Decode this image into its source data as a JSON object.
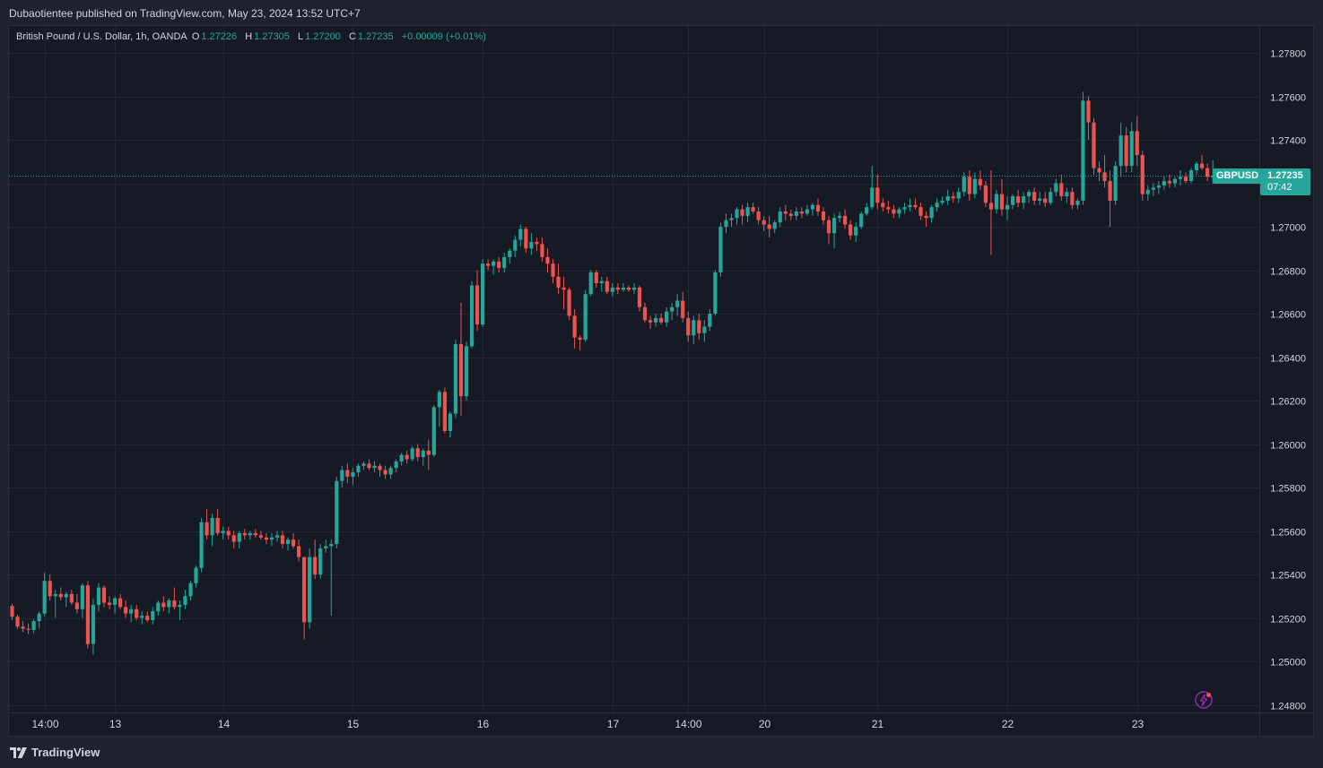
{
  "header": {
    "published_by": "Dubaotientee published on TradingView.com, May 23, 2024 13:52 UTC+7"
  },
  "legend": {
    "instrument": "British Pound / U.S. Dollar, 1h, OANDA",
    "open_label": "O",
    "open": "1.27226",
    "high_label": "H",
    "high": "1.27305",
    "low_label": "L",
    "low": "1.27200",
    "close_label": "C",
    "close": "1.27235",
    "change": "+0.00009 (+0.01%)"
  },
  "price_tag": {
    "symbol": "GBPUSD",
    "price": "1.27235",
    "countdown": "07:42"
  },
  "footer": {
    "brand": "TradingView"
  },
  "colors": {
    "up": "#26a69a",
    "down": "#ef5350",
    "background": "#161a25",
    "grid": "#232733",
    "text": "#d1d4dc"
  },
  "icons": {
    "alert": "lightning-bolt-icon",
    "logo": "tradingview-logo-icon"
  },
  "chart_data": {
    "type": "candlestick",
    "symbol": "GBPUSD",
    "interval": "1h",
    "ylim": [
      1.2475,
      1.279
    ],
    "y_ticks": [
      "1.27800",
      "1.27600",
      "1.27400",
      "1.27200",
      "1.27000",
      "1.26800",
      "1.26600",
      "1.26400",
      "1.26200",
      "1.26000",
      "1.25800",
      "1.25600",
      "1.25400",
      "1.25200",
      "1.25000",
      "1.24800"
    ],
    "x_ticks": [
      {
        "label": "14:00",
        "index": 6
      },
      {
        "label": "13",
        "index": 19
      },
      {
        "label": "14",
        "index": 39
      },
      {
        "label": "15",
        "index": 63
      },
      {
        "label": "16",
        "index": 87
      },
      {
        "label": "17",
        "index": 111
      },
      {
        "label": "14:00",
        "index": 125
      },
      {
        "label": "20",
        "index": 139
      },
      {
        "label": "21",
        "index": 160
      },
      {
        "label": "22",
        "index": 184
      },
      {
        "label": "23",
        "index": 208
      }
    ],
    "last_price": 1.27235,
    "grid": true,
    "candles": [
      [
        1.25255,
        1.25265,
        1.2519,
        1.25205
      ],
      [
        1.25205,
        1.25215,
        1.2515,
        1.2516
      ],
      [
        1.2516,
        1.25185,
        1.25135,
        1.2515
      ],
      [
        1.2515,
        1.25175,
        1.25125,
        1.25145
      ],
      [
        1.25145,
        1.25195,
        1.2513,
        1.25185
      ],
      [
        1.25185,
        1.2523,
        1.2515,
        1.2522
      ],
      [
        1.2522,
        1.2541,
        1.25205,
        1.2537
      ],
      [
        1.2537,
        1.254,
        1.2528,
        1.253
      ],
      [
        1.253,
        1.2533,
        1.252,
        1.2531
      ],
      [
        1.2531,
        1.2534,
        1.2528,
        1.25295
      ],
      [
        1.25295,
        1.2532,
        1.2525,
        1.2531
      ],
      [
        1.2531,
        1.2533,
        1.2526,
        1.2527
      ],
      [
        1.2527,
        1.2531,
        1.2522,
        1.2524
      ],
      [
        1.2524,
        1.2536,
        1.252,
        1.2535
      ],
      [
        1.2535,
        1.2537,
        1.2506,
        1.2508
      ],
      [
        1.2508,
        1.2529,
        1.2503,
        1.2526
      ],
      [
        1.2526,
        1.2536,
        1.2523,
        1.2534
      ],
      [
        1.2534,
        1.2535,
        1.2525,
        1.2527
      ],
      [
        1.2527,
        1.253,
        1.2524,
        1.2526
      ],
      [
        1.2526,
        1.253,
        1.2522,
        1.2529
      ],
      [
        1.2529,
        1.2531,
        1.2524,
        1.2525
      ],
      [
        1.2525,
        1.2528,
        1.252,
        1.2522
      ],
      [
        1.2522,
        1.2526,
        1.2518,
        1.2524
      ],
      [
        1.2524,
        1.2526,
        1.2519,
        1.252
      ],
      [
        1.252,
        1.2523,
        1.2517,
        1.2521
      ],
      [
        1.2521,
        1.2523,
        1.2518,
        1.2519
      ],
      [
        1.2519,
        1.2525,
        1.2517,
        1.2523
      ],
      [
        1.2523,
        1.2528,
        1.2521,
        1.2527
      ],
      [
        1.2527,
        1.253,
        1.2523,
        1.2525
      ],
      [
        1.2525,
        1.2529,
        1.2522,
        1.2528
      ],
      [
        1.2528,
        1.2534,
        1.2524,
        1.2525
      ],
      [
        1.2525,
        1.2528,
        1.2519,
        1.2526
      ],
      [
        1.2526,
        1.2533,
        1.2524,
        1.253
      ],
      [
        1.253,
        1.2537,
        1.2528,
        1.2536
      ],
      [
        1.2536,
        1.2544,
        1.2534,
        1.2543
      ],
      [
        1.2543,
        1.2566,
        1.2541,
        1.2564
      ],
      [
        1.2564,
        1.257,
        1.2556,
        1.2558
      ],
      [
        1.2558,
        1.2568,
        1.2553,
        1.2566
      ],
      [
        1.2566,
        1.257,
        1.2558,
        1.2559
      ],
      [
        1.2559,
        1.2562,
        1.2556,
        1.256
      ],
      [
        1.256,
        1.2562,
        1.2556,
        1.2558
      ],
      [
        1.2558,
        1.256,
        1.2552,
        1.2555
      ],
      [
        1.2555,
        1.256,
        1.2552,
        1.2559
      ],
      [
        1.2559,
        1.2561,
        1.2556,
        1.2558
      ],
      [
        1.2558,
        1.256,
        1.2556,
        1.2559
      ],
      [
        1.2559,
        1.2561,
        1.2557,
        1.2558
      ],
      [
        1.2558,
        1.256,
        1.2556,
        1.2557
      ],
      [
        1.2557,
        1.2559,
        1.2554,
        1.2556
      ],
      [
        1.2556,
        1.2559,
        1.2553,
        1.2557
      ],
      [
        1.2557,
        1.256,
        1.2555,
        1.2558
      ],
      [
        1.2558,
        1.256,
        1.2552,
        1.2554
      ],
      [
        1.2554,
        1.2557,
        1.2551,
        1.2556
      ],
      [
        1.2556,
        1.2559,
        1.2552,
        1.2553
      ],
      [
        1.2553,
        1.2556,
        1.2546,
        1.2548
      ],
      [
        1.2548,
        1.2548,
        1.251,
        1.2518
      ],
      [
        1.2518,
        1.2552,
        1.2515,
        1.2548
      ],
      [
        1.2548,
        1.2556,
        1.2538,
        1.254
      ],
      [
        1.254,
        1.2554,
        1.2538,
        1.2552
      ],
      [
        1.2552,
        1.2556,
        1.255,
        1.2553
      ],
      [
        1.2553,
        1.2556,
        1.2521,
        1.2554
      ],
      [
        1.2554,
        1.2585,
        1.2552,
        1.2583
      ],
      [
        1.2583,
        1.259,
        1.258,
        1.2588
      ],
      [
        1.2588,
        1.2591,
        1.2582,
        1.2585
      ],
      [
        1.2585,
        1.2589,
        1.2581,
        1.2587
      ],
      [
        1.2587,
        1.2591,
        1.2585,
        1.259
      ],
      [
        1.259,
        1.2592,
        1.2588,
        1.2591
      ],
      [
        1.2591,
        1.2593,
        1.2588,
        1.2589
      ],
      [
        1.2589,
        1.2592,
        1.2587,
        1.259
      ],
      [
        1.259,
        1.2591,
        1.2585,
        1.2588
      ],
      [
        1.2588,
        1.259,
        1.2584,
        1.2586
      ],
      [
        1.2586,
        1.259,
        1.2584,
        1.2589
      ],
      [
        1.2589,
        1.2593,
        1.2587,
        1.2592
      ],
      [
        1.2592,
        1.2596,
        1.259,
        1.2595
      ],
      [
        1.2595,
        1.2597,
        1.2591,
        1.2593
      ],
      [
        1.2593,
        1.2599,
        1.2592,
        1.2598
      ],
      [
        1.2598,
        1.26,
        1.2592,
        1.2594
      ],
      [
        1.2594,
        1.2598,
        1.259,
        1.2597
      ],
      [
        1.2597,
        1.2602,
        1.2588,
        1.2595
      ],
      [
        1.2595,
        1.2618,
        1.2594,
        1.2617
      ],
      [
        1.2617,
        1.2625,
        1.2608,
        1.2624
      ],
      [
        1.2624,
        1.2626,
        1.2605,
        1.2606
      ],
      [
        1.2606,
        1.2615,
        1.2603,
        1.2614
      ],
      [
        1.2614,
        1.2648,
        1.2612,
        1.2646
      ],
      [
        1.2646,
        1.2665,
        1.2613,
        1.2622
      ],
      [
        1.2622,
        1.2647,
        1.262,
        1.2645
      ],
      [
        1.2645,
        1.2675,
        1.2644,
        1.2673
      ],
      [
        1.2673,
        1.268,
        1.2652,
        1.2655
      ],
      [
        1.2655,
        1.2685,
        1.2654,
        1.2683
      ],
      [
        1.2683,
        1.2685,
        1.268,
        1.2682
      ],
      [
        1.2682,
        1.2685,
        1.2678,
        1.2684
      ],
      [
        1.2684,
        1.2686,
        1.2679,
        1.2681
      ],
      [
        1.2681,
        1.2688,
        1.2679,
        1.2686
      ],
      [
        1.2686,
        1.269,
        1.2683,
        1.2689
      ],
      [
        1.2689,
        1.2696,
        1.2686,
        1.2694
      ],
      [
        1.2694,
        1.2701,
        1.2691,
        1.2699
      ],
      [
        1.2699,
        1.27,
        1.2688,
        1.269
      ],
      [
        1.269,
        1.2697,
        1.2687,
        1.2693
      ],
      [
        1.2693,
        1.2695,
        1.2689,
        1.2692
      ],
      [
        1.2692,
        1.2695,
        1.2684,
        1.2686
      ],
      [
        1.2686,
        1.269,
        1.2679,
        1.2683
      ],
      [
        1.2683,
        1.2685,
        1.2674,
        1.2677
      ],
      [
        1.2677,
        1.2683,
        1.2669,
        1.2672
      ],
      [
        1.2672,
        1.2677,
        1.2662,
        1.2671
      ],
      [
        1.2671,
        1.2672,
        1.2657,
        1.2659
      ],
      [
        1.2659,
        1.2662,
        1.2644,
        1.2649
      ],
      [
        1.2649,
        1.265,
        1.2643,
        1.2648
      ],
      [
        1.2648,
        1.2671,
        1.2647,
        1.2669
      ],
      [
        1.2669,
        1.268,
        1.2668,
        1.2679
      ],
      [
        1.2679,
        1.268,
        1.2672,
        1.2674
      ],
      [
        1.2674,
        1.2677,
        1.267,
        1.2675
      ],
      [
        1.2675,
        1.2677,
        1.2669,
        1.267
      ],
      [
        1.267,
        1.2674,
        1.2668,
        1.2672
      ],
      [
        1.2672,
        1.2674,
        1.2669,
        1.2671
      ],
      [
        1.2671,
        1.2674,
        1.267,
        1.2672
      ],
      [
        1.2672,
        1.2673,
        1.267,
        1.2671
      ],
      [
        1.2671,
        1.2674,
        1.2669,
        1.2672
      ],
      [
        1.2672,
        1.2673,
        1.2661,
        1.2663
      ],
      [
        1.2663,
        1.2665,
        1.2656,
        1.2657
      ],
      [
        1.2657,
        1.2659,
        1.2653,
        1.2656
      ],
      [
        1.2656,
        1.266,
        1.2654,
        1.2658
      ],
      [
        1.2658,
        1.266,
        1.2655,
        1.2656
      ],
      [
        1.2656,
        1.2663,
        1.2654,
        1.2661
      ],
      [
        1.2661,
        1.2665,
        1.2657,
        1.2663
      ],
      [
        1.2663,
        1.2669,
        1.2659,
        1.2666
      ],
      [
        1.2666,
        1.267,
        1.2656,
        1.2658
      ],
      [
        1.2658,
        1.2661,
        1.2647,
        1.265
      ],
      [
        1.265,
        1.2659,
        1.2646,
        1.2657
      ],
      [
        1.2657,
        1.266,
        1.2648,
        1.2651
      ],
      [
        1.2651,
        1.2657,
        1.2647,
        1.2654
      ],
      [
        1.2654,
        1.2662,
        1.2652,
        1.266
      ],
      [
        1.266,
        1.268,
        1.2659,
        1.2679
      ],
      [
        1.2679,
        1.2702,
        1.2677,
        1.27
      ],
      [
        1.27,
        1.2706,
        1.2697,
        1.2703
      ],
      [
        1.2703,
        1.2706,
        1.27,
        1.2704
      ],
      [
        1.2704,
        1.2709,
        1.2701,
        1.2708
      ],
      [
        1.2708,
        1.271,
        1.2701,
        1.2705
      ],
      [
        1.2705,
        1.2711,
        1.2702,
        1.2709
      ],
      [
        1.2709,
        1.2711,
        1.2706,
        1.2707
      ],
      [
        1.2707,
        1.2709,
        1.2701,
        1.2703
      ],
      [
        1.2703,
        1.2705,
        1.2698,
        1.2701
      ],
      [
        1.2701,
        1.2705,
        1.2695,
        1.2699
      ],
      [
        1.2699,
        1.2703,
        1.2697,
        1.2702
      ],
      [
        1.2702,
        1.2709,
        1.27,
        1.2707
      ],
      [
        1.2707,
        1.271,
        1.2703,
        1.2706
      ],
      [
        1.2706,
        1.2708,
        1.2703,
        1.2705
      ],
      [
        1.2705,
        1.2709,
        1.2703,
        1.2707
      ],
      [
        1.2707,
        1.2709,
        1.2704,
        1.2706
      ],
      [
        1.2706,
        1.271,
        1.2705,
        1.2708
      ],
      [
        1.2708,
        1.2711,
        1.2705,
        1.271
      ],
      [
        1.271,
        1.2713,
        1.2705,
        1.2707
      ],
      [
        1.2707,
        1.2709,
        1.2701,
        1.2703
      ],
      [
        1.2703,
        1.2705,
        1.2692,
        1.2697
      ],
      [
        1.2697,
        1.2706,
        1.269,
        1.2704
      ],
      [
        1.2704,
        1.2707,
        1.2702,
        1.2705
      ],
      [
        1.2705,
        1.2708,
        1.2699,
        1.2701
      ],
      [
        1.2701,
        1.2703,
        1.2694,
        1.2696
      ],
      [
        1.2696,
        1.2702,
        1.2693,
        1.27
      ],
      [
        1.27,
        1.2707,
        1.2699,
        1.2706
      ],
      [
        1.2706,
        1.2711,
        1.2705,
        1.2709
      ],
      [
        1.2709,
        1.2728,
        1.2708,
        1.2718
      ],
      [
        1.2718,
        1.2724,
        1.2708,
        1.2711
      ],
      [
        1.2711,
        1.2713,
        1.2707,
        1.2709
      ],
      [
        1.2709,
        1.2712,
        1.2706,
        1.2708
      ],
      [
        1.2708,
        1.271,
        1.2704,
        1.2706
      ],
      [
        1.2706,
        1.2709,
        1.2704,
        1.2708
      ],
      [
        1.2708,
        1.2711,
        1.2706,
        1.2709
      ],
      [
        1.2709,
        1.2713,
        1.2707,
        1.271
      ],
      [
        1.271,
        1.2713,
        1.2708,
        1.2709
      ],
      [
        1.2709,
        1.2711,
        1.2703,
        1.2705
      ],
      [
        1.2705,
        1.2707,
        1.27,
        1.2704
      ],
      [
        1.2704,
        1.271,
        1.2702,
        1.2709
      ],
      [
        1.2709,
        1.2713,
        1.2707,
        1.2711
      ],
      [
        1.2711,
        1.2714,
        1.271,
        1.2712
      ],
      [
        1.2712,
        1.2717,
        1.271,
        1.2714
      ],
      [
        1.2714,
        1.2716,
        1.2711,
        1.2713
      ],
      [
        1.2713,
        1.2718,
        1.2711,
        1.2716
      ],
      [
        1.2716,
        1.2725,
        1.2714,
        1.2723
      ],
      [
        1.2723,
        1.2726,
        1.2712,
        1.2715
      ],
      [
        1.2715,
        1.2725,
        1.2713,
        1.2722
      ],
      [
        1.2722,
        1.2726,
        1.2717,
        1.2719
      ],
      [
        1.2719,
        1.2721,
        1.2709,
        1.2711
      ],
      [
        1.2711,
        1.2726,
        1.2687,
        1.2708
      ],
      [
        1.2708,
        1.2717,
        1.2706,
        1.2715
      ],
      [
        1.2715,
        1.2722,
        1.2705,
        1.2708
      ],
      [
        1.2708,
        1.2714,
        1.2703,
        1.271
      ],
      [
        1.271,
        1.2715,
        1.2708,
        1.2714
      ],
      [
        1.2714,
        1.2717,
        1.2709,
        1.2711
      ],
      [
        1.2711,
        1.2716,
        1.2708,
        1.2714
      ],
      [
        1.2714,
        1.2717,
        1.2711,
        1.2716
      ],
      [
        1.2716,
        1.2718,
        1.271,
        1.2712
      ],
      [
        1.2712,
        1.2716,
        1.271,
        1.2713
      ],
      [
        1.2713,
        1.2716,
        1.2709,
        1.2711
      ],
      [
        1.2711,
        1.2718,
        1.271,
        1.2716
      ],
      [
        1.2716,
        1.2722,
        1.2714,
        1.272
      ],
      [
        1.272,
        1.2724,
        1.2712,
        1.2714
      ],
      [
        1.2714,
        1.2718,
        1.2711,
        1.2716
      ],
      [
        1.2716,
        1.2718,
        1.2708,
        1.271
      ],
      [
        1.271,
        1.2713,
        1.2708,
        1.2712
      ],
      [
        1.2712,
        1.2762,
        1.271,
        1.2758
      ],
      [
        1.2758,
        1.276,
        1.274,
        1.2748
      ],
      [
        1.2748,
        1.275,
        1.2724,
        1.2727
      ],
      [
        1.2727,
        1.273,
        1.2721,
        1.2725
      ],
      [
        1.2725,
        1.2733,
        1.2718,
        1.2721
      ],
      [
        1.2721,
        1.2726,
        1.27,
        1.2712
      ],
      [
        1.2712,
        1.273,
        1.271,
        1.2728
      ],
      [
        1.2728,
        1.2748,
        1.2723,
        1.2742
      ],
      [
        1.2742,
        1.2746,
        1.2725,
        1.2728
      ],
      [
        1.2728,
        1.2748,
        1.2725,
        1.2744
      ],
      [
        1.2744,
        1.2751,
        1.2728,
        1.2733
      ],
      [
        1.2733,
        1.2735,
        1.2712,
        1.2715
      ],
      [
        1.2715,
        1.2719,
        1.2712,
        1.2717
      ],
      [
        1.2717,
        1.272,
        1.2714,
        1.2718
      ],
      [
        1.2718,
        1.2721,
        1.2715,
        1.2719
      ],
      [
        1.2719,
        1.2723,
        1.2717,
        1.2721
      ],
      [
        1.2721,
        1.2724,
        1.2718,
        1.272
      ],
      [
        1.272,
        1.2723,
        1.2718,
        1.2722
      ],
      [
        1.2722,
        1.2726,
        1.2719,
        1.2723
      ],
      [
        1.2723,
        1.2725,
        1.272,
        1.2721
      ],
      [
        1.2721,
        1.2727,
        1.272,
        1.2726
      ],
      [
        1.2726,
        1.273,
        1.2724,
        1.2729
      ],
      [
        1.2729,
        1.2733,
        1.2726,
        1.2727
      ],
      [
        1.2727,
        1.2729,
        1.2721,
        1.2723
      ],
      [
        1.27226,
        1.27305,
        1.272,
        1.27235
      ]
    ]
  }
}
